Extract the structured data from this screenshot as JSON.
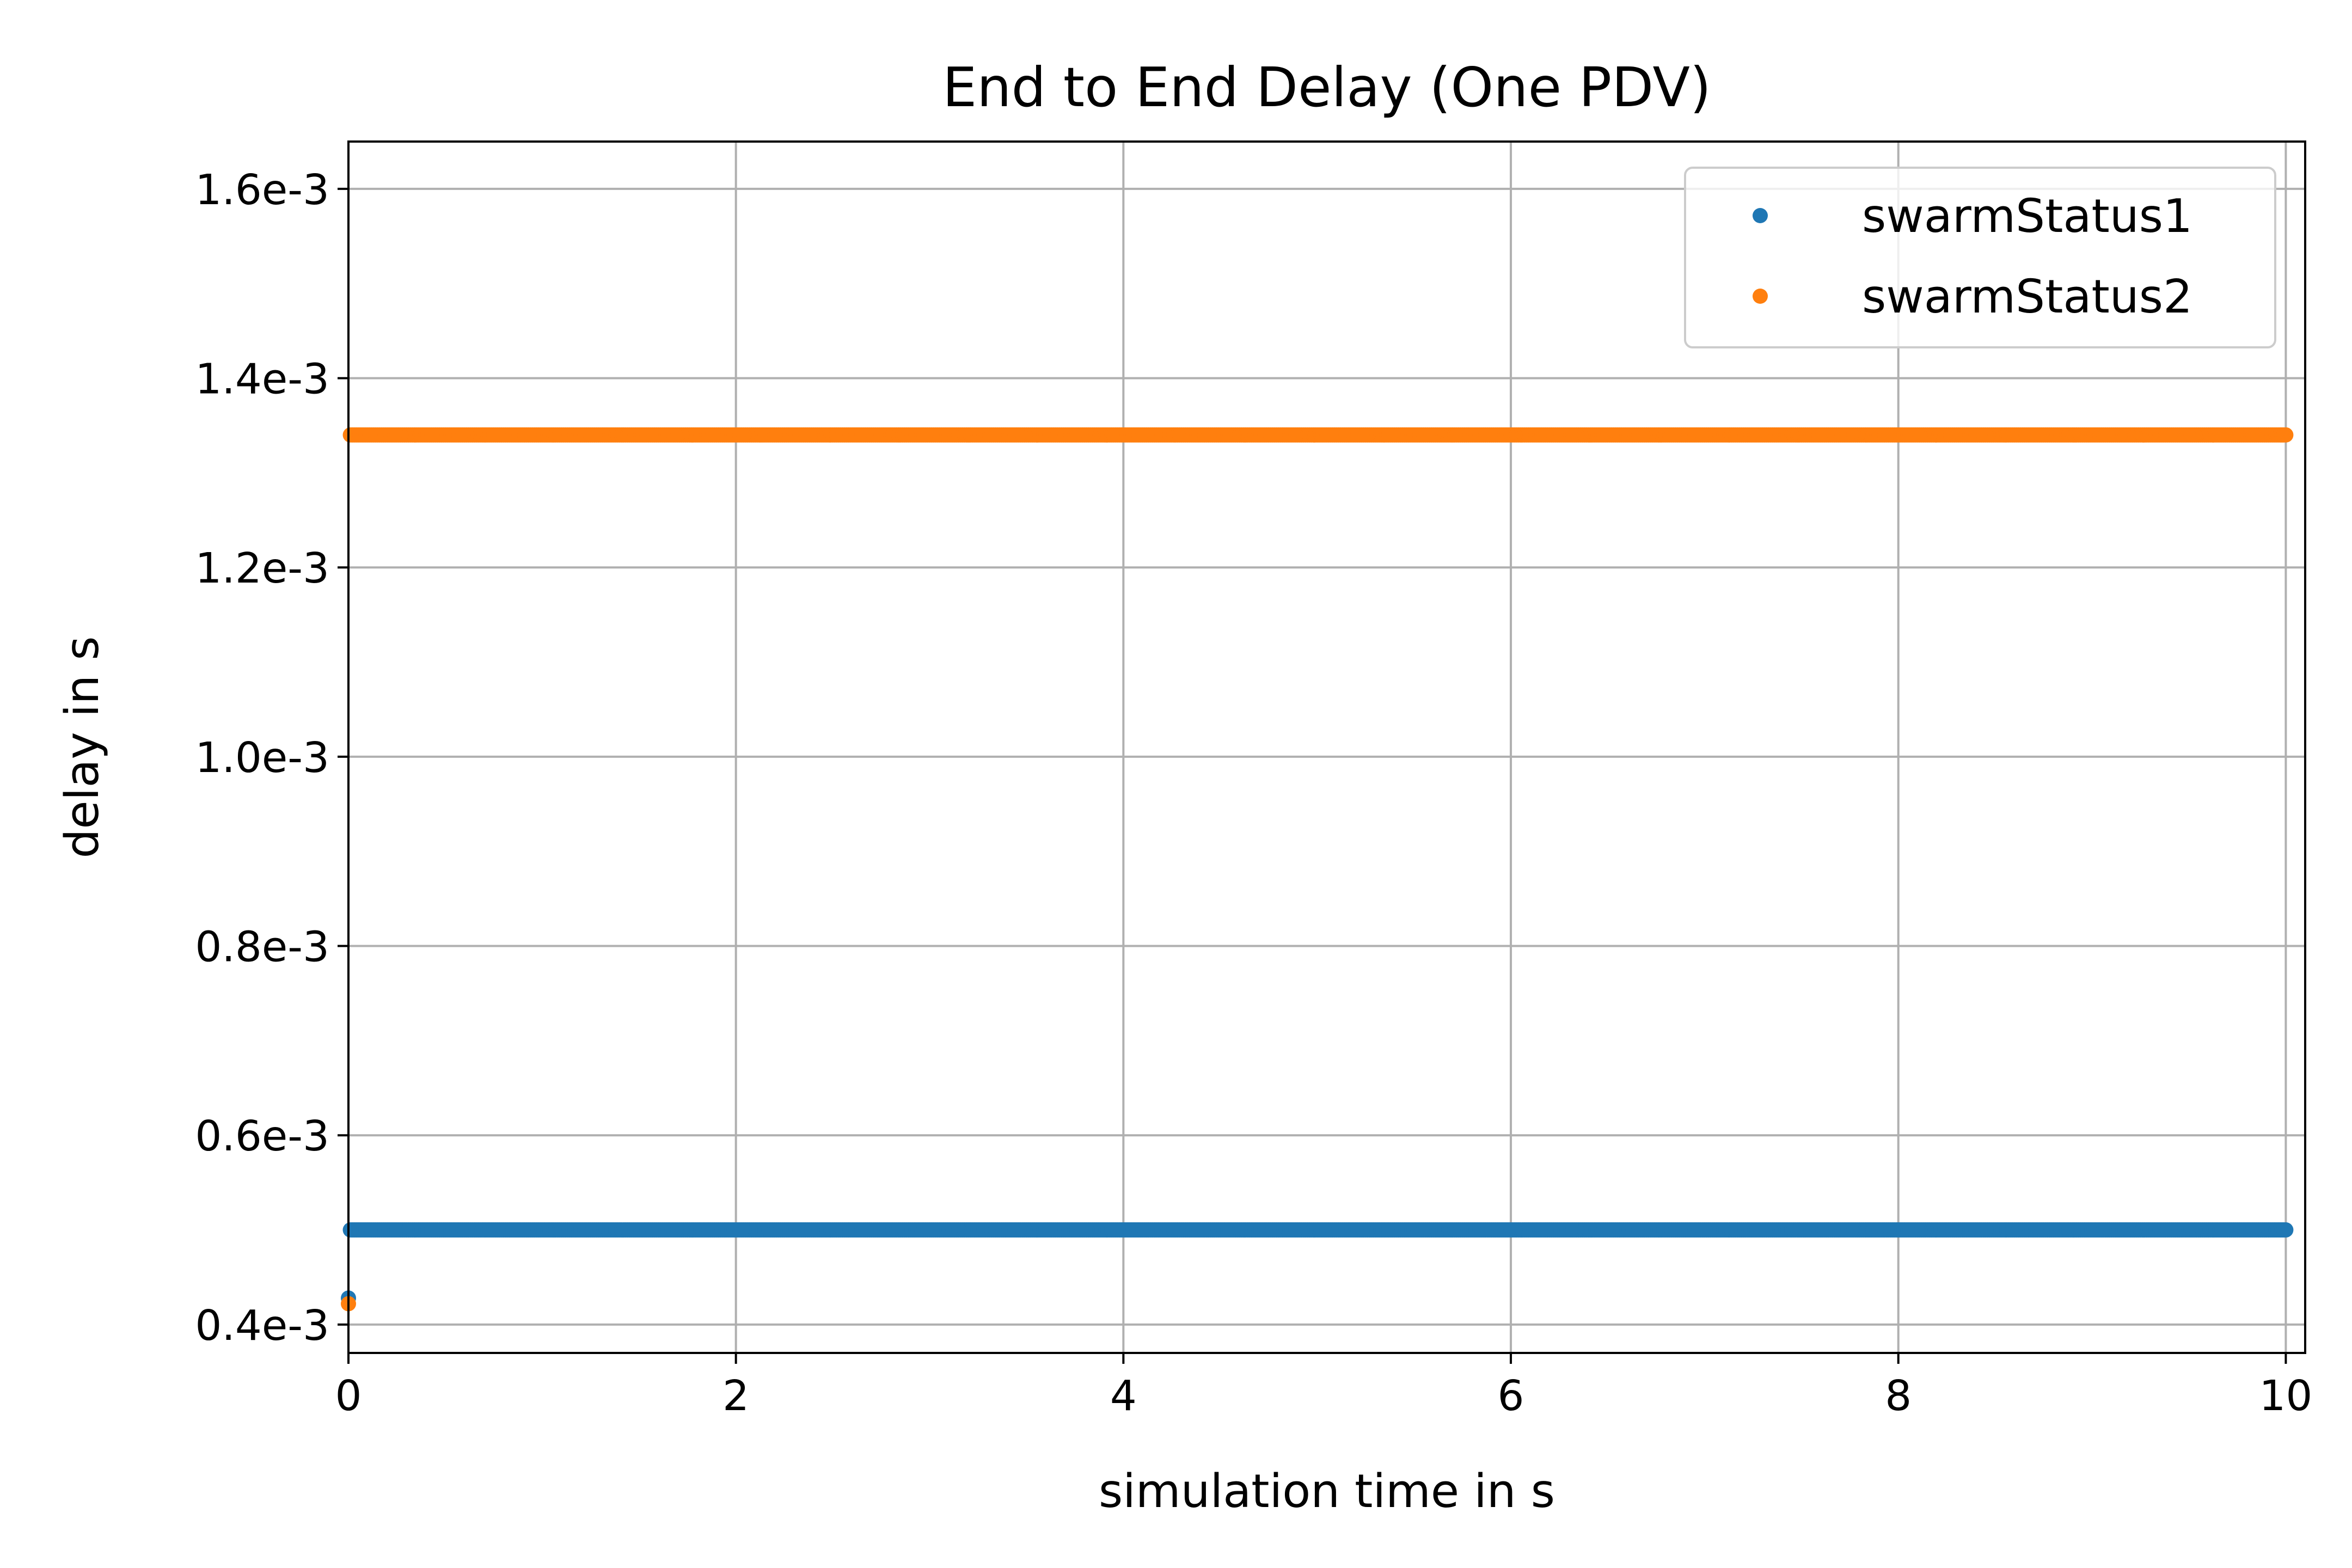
{
  "chart_data": {
    "type": "scatter",
    "title": "End to End Delay (One PDV)",
    "xlabel": "simulation time in s",
    "ylabel": "delay in s",
    "xlim": [
      0,
      10.1
    ],
    "ylim": [
      0.00037,
      0.00165
    ],
    "xticks": [
      0,
      2,
      4,
      6,
      8,
      10
    ],
    "xtick_labels": [
      "0",
      "2",
      "4",
      "6",
      "8",
      "10"
    ],
    "yticks": [
      0.0004,
      0.0006,
      0.0008,
      0.001,
      0.0012,
      0.0014,
      0.0016
    ],
    "ytick_labels": [
      "0.4e-3",
      "0.6e-3",
      "0.8e-3",
      "1.0e-3",
      "1.2e-3",
      "1.4e-3",
      "1.6e-3"
    ],
    "grid": true,
    "legend_position": "top-right",
    "series": [
      {
        "name": "swarmStatus1",
        "color": "#1f77b4",
        "initial_points": [
          [
            0.0,
            0.000428
          ]
        ],
        "steady_value": 0.0005,
        "x_start": 0.01,
        "x_end": 10.0,
        "sample_interval": 0.01
      },
      {
        "name": "swarmStatus2",
        "color": "#ff7f0e",
        "initial_points": [
          [
            0.0,
            0.000422
          ]
        ],
        "steady_value": 0.00134,
        "x_start": 0.01,
        "x_end": 10.0,
        "sample_interval": 0.01
      }
    ]
  }
}
